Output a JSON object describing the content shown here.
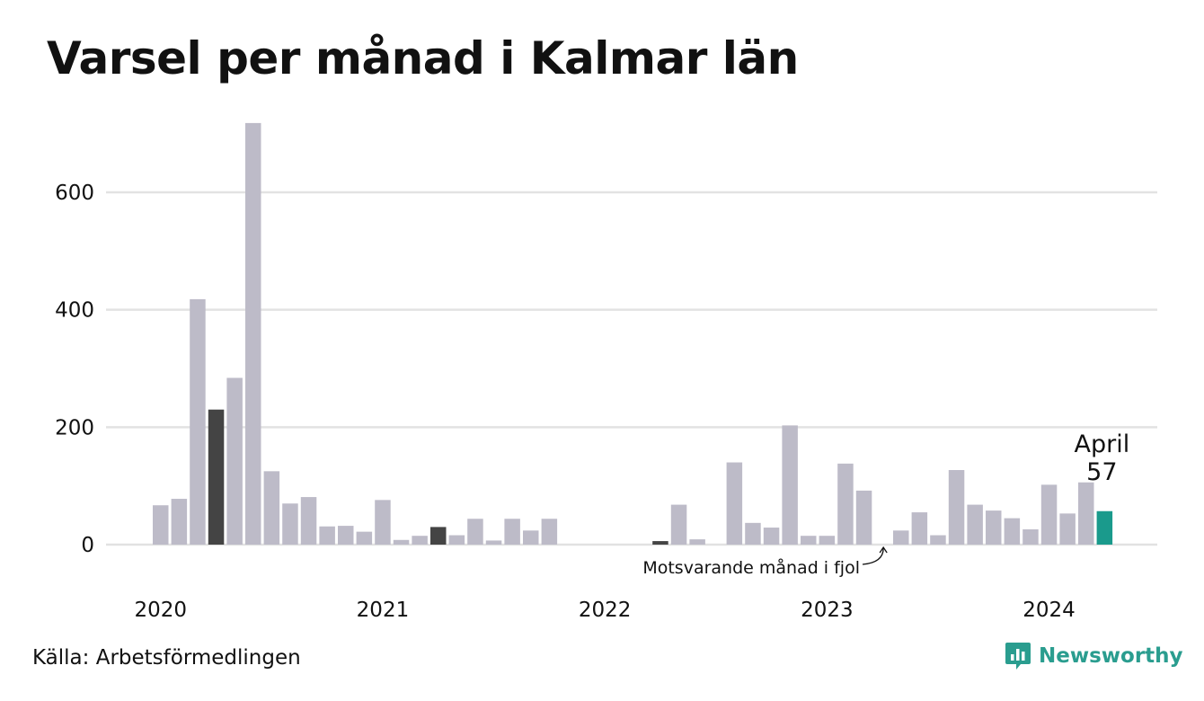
{
  "title": "Varsel per månad i Kalmar län",
  "source": "Källa: Arbetsförmedlingen",
  "brand": {
    "name": "Newsworthy",
    "icon": "newsworthy-logo-icon"
  },
  "colors": {
    "bar": "#bdbbc8",
    "comparison": "#444444",
    "highlight": "#1a9a8c",
    "grid": "#e2e2e2",
    "brand": "#2a9d8f"
  },
  "chart_data": {
    "type": "bar",
    "title": "Varsel per månad i Kalmar län",
    "ylim": [
      0,
      720
    ],
    "yticks": [
      0,
      200,
      400,
      600
    ],
    "grid": true,
    "legend": "none",
    "x_tick_labels": [
      "2020",
      "2021",
      "2022",
      "2023",
      "2024"
    ],
    "x": [
      "2020-01",
      "2020-02",
      "2020-03",
      "2020-04",
      "2020-05",
      "2020-06",
      "2020-07",
      "2020-08",
      "2020-09",
      "2020-10",
      "2020-11",
      "2020-12",
      "2021-01",
      "2021-02",
      "2021-03",
      "2021-04",
      "2021-05",
      "2021-06",
      "2021-07",
      "2021-08",
      "2021-09",
      "2021-10",
      "2021-11",
      "2021-12",
      "2022-01",
      "2022-02",
      "2022-03",
      "2022-04",
      "2022-05",
      "2022-06",
      "2022-07",
      "2022-08",
      "2022-09",
      "2022-10",
      "2022-11",
      "2022-12",
      "2023-01",
      "2023-02",
      "2023-03",
      "2023-04",
      "2023-05",
      "2023-06",
      "2023-07",
      "2023-08",
      "2023-09",
      "2023-10",
      "2023-11",
      "2023-12",
      "2024-01",
      "2024-02",
      "2024-03",
      "2024-04"
    ],
    "values": [
      67,
      78,
      418,
      230,
      284,
      718,
      125,
      70,
      81,
      31,
      32,
      22,
      76,
      8,
      15,
      30,
      16,
      44,
      7,
      44,
      24,
      44,
      0,
      0,
      0,
      0,
      0,
      6,
      68,
      9,
      0,
      140,
      37,
      29,
      203,
      15,
      15,
      138,
      92,
      0,
      24,
      55,
      16,
      127,
      68,
      58,
      45,
      26,
      102,
      53,
      106,
      57
    ],
    "comparison_months": [
      "2020-04",
      "2021-04",
      "2022-04",
      "2023-04"
    ],
    "highlight": {
      "month": "2024-04",
      "label": "April",
      "value": "57"
    },
    "annotation": {
      "text": "Motsvarande månad i fjol",
      "target": "2023-04"
    }
  }
}
